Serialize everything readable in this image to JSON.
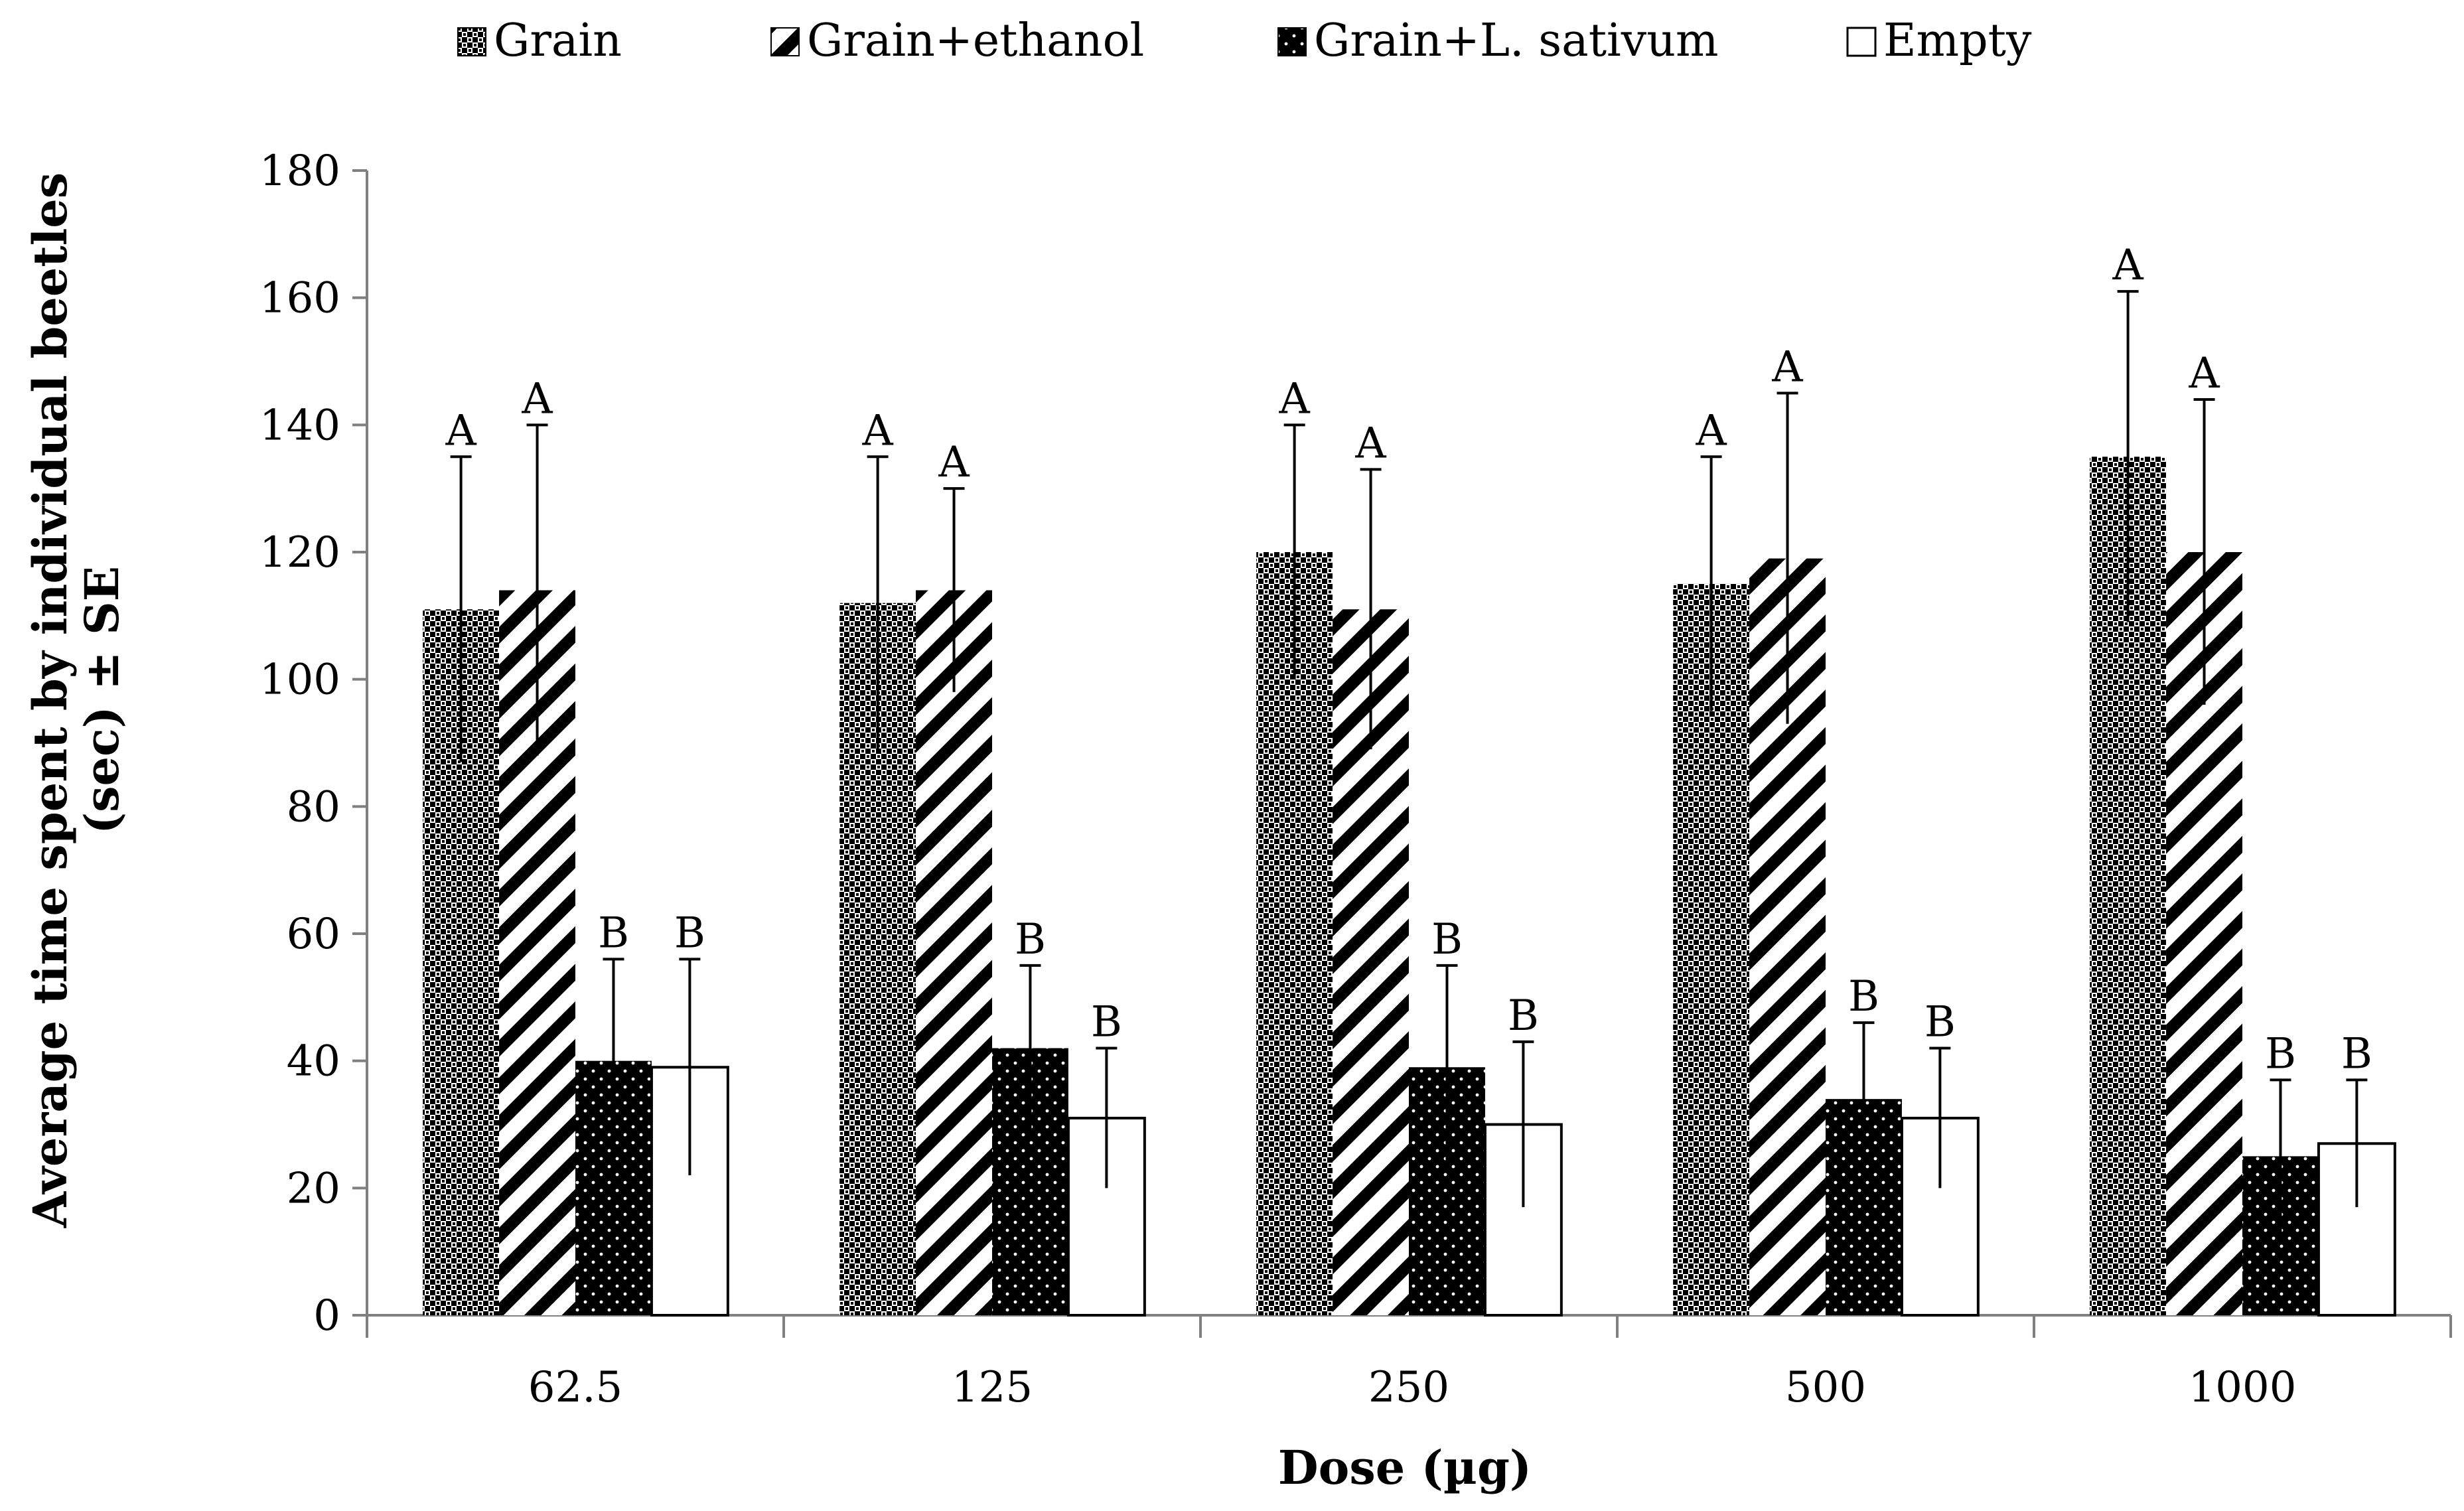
{
  "chart_data": {
    "type": "bar",
    "title": "",
    "xlabel": "Dose (µg)",
    "ylabel_line1": "Average time spent by individual beetles",
    "ylabel_line2": "(sec) ± SE",
    "ylim": [
      0,
      180
    ],
    "yticks": [
      0,
      20,
      40,
      60,
      80,
      100,
      120,
      140,
      160,
      180
    ],
    "categories": [
      "62.5",
      "125",
      "250",
      "500",
      "1000"
    ],
    "legend_position": "top",
    "series": [
      {
        "name": "Grain",
        "pattern": "checker",
        "values": [
          111,
          112,
          120,
          115,
          135
        ],
        "errors": [
          24,
          23,
          20,
          20,
          26
        ],
        "significance": [
          "A",
          "A",
          "A",
          "A",
          "A"
        ]
      },
      {
        "name": "Grain+ethanol",
        "pattern": "diagonal",
        "values": [
          114,
          114,
          111,
          119,
          120
        ],
        "errors": [
          26,
          16,
          22,
          26,
          24
        ],
        "significance": [
          "A",
          "A",
          "A",
          "A",
          "A"
        ]
      },
      {
        "name": "Grain+L. sativum",
        "pattern": "dotted-black",
        "values": [
          40,
          42,
          39,
          34,
          25
        ],
        "errors": [
          16,
          13,
          16,
          12,
          12
        ],
        "significance": [
          "B",
          "B",
          "B",
          "B",
          "B"
        ]
      },
      {
        "name": "Empty",
        "pattern": "white",
        "values": [
          39,
          31,
          30,
          31,
          27
        ],
        "errors": [
          17,
          11,
          13,
          11,
          10
        ],
        "significance": [
          "B",
          "B",
          "B",
          "B",
          "B"
        ]
      }
    ]
  }
}
